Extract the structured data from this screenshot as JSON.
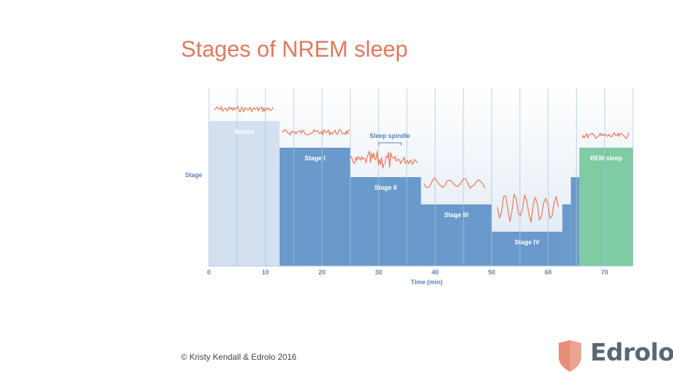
{
  "slide": {
    "title": "Stages of NREM sleep",
    "copyright": "© Kristy Kendall & Edrolo 2016",
    "logo_text": "Edrolo"
  },
  "colors": {
    "title": "#e07a5f",
    "awake_block": "#d4e0ef",
    "nrem_block": "#6a9acb",
    "rem_block": "#7fcba4",
    "wave": "#ef7b5e",
    "axis_text": "#5b83b3",
    "gridline": "#a9c3e0",
    "logo": "#e78d78"
  },
  "chart_data": {
    "type": "area",
    "xlabel": "Time (min)",
    "ylabel": "Stage",
    "xlim": [
      0,
      75
    ],
    "x_ticks": [
      0,
      10,
      20,
      30,
      40,
      50,
      60,
      70
    ],
    "x_tick_labels": [
      "0",
      "10",
      "20",
      "30",
      "40",
      "50",
      "60",
      "70"
    ],
    "gridlines_x": [
      0,
      5,
      10,
      15,
      20,
      25,
      30,
      35,
      40,
      45,
      50,
      55,
      60,
      65,
      70,
      75
    ],
    "grid": true,
    "depth_levels": {
      "Awake": 0,
      "Stage I": 1,
      "Stage II": 2,
      "Stage III": 3,
      "Stage IV": 4
    },
    "segments": [
      {
        "label": "Awake",
        "start": 0,
        "end": 12.5,
        "depth": 0,
        "kind": "awake"
      },
      {
        "label": "Stage I",
        "start": 12.5,
        "end": 25,
        "depth": 1,
        "kind": "nrem"
      },
      {
        "label": "Stage II",
        "start": 25,
        "end": 37.5,
        "depth": 2,
        "kind": "nrem"
      },
      {
        "label": "Stage III",
        "start": 37.5,
        "end": 50,
        "depth": 3,
        "kind": "nrem"
      },
      {
        "label": "Stage IV",
        "start": 50,
        "end": 62.5,
        "depth": 4,
        "kind": "nrem"
      },
      {
        "label": "",
        "start": 62.5,
        "end": 64,
        "depth": 3,
        "kind": "nrem"
      },
      {
        "label": "",
        "start": 64,
        "end": 65.5,
        "depth": 2,
        "kind": "nrem"
      },
      {
        "label": "REM sleep",
        "start": 65.5,
        "end": 75,
        "depth": 1,
        "kind": "rem"
      }
    ],
    "annotations": [
      {
        "text": "Sleep spindle",
        "x_start": 30,
        "x_end": 34
      }
    ],
    "waves": [
      {
        "stage": "Awake",
        "x_start": 1,
        "x_end": 11.5,
        "type": "fast-low"
      },
      {
        "stage": "Stage I",
        "x_start": 13,
        "x_end": 25,
        "type": "fast-low"
      },
      {
        "stage": "Stage II",
        "x_start": 25,
        "x_end": 37,
        "type": "spindle"
      },
      {
        "stage": "Stage III",
        "x_start": 38,
        "x_end": 49,
        "type": "slow-medium"
      },
      {
        "stage": "Stage IV",
        "x_start": 51,
        "x_end": 62,
        "type": "slow-high"
      },
      {
        "stage": "REM sleep",
        "x_start": 66,
        "x_end": 74.5,
        "type": "fast-low"
      }
    ]
  }
}
